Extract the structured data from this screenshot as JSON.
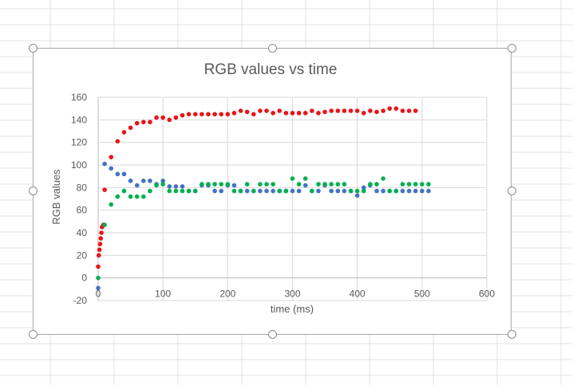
{
  "chart_data": {
    "type": "scatter",
    "title": "RGB values vs time",
    "xlabel": "time (ms)",
    "ylabel": "RGB values",
    "xlim": [
      0,
      600
    ],
    "ylim": [
      -20,
      160
    ],
    "xticks": [
      0,
      100,
      200,
      300,
      400,
      500,
      600
    ],
    "yticks": [
      -20,
      0,
      20,
      40,
      60,
      80,
      100,
      120,
      140,
      160
    ],
    "xtick_labels": [
      "0",
      "100",
      "200",
      "300",
      "400",
      "500",
      "600"
    ],
    "ytick_labels": [
      "-20",
      "0",
      "20",
      "40",
      "60",
      "80",
      "100",
      "120",
      "140",
      "160"
    ],
    "grid": true,
    "legend": "none",
    "series": [
      {
        "color": "#e8141a",
        "x": [
          0,
          1,
          2,
          3,
          4,
          5,
          6,
          8,
          10,
          20,
          30,
          40,
          50,
          60,
          70,
          80,
          90,
          100,
          110,
          120,
          130,
          140,
          150,
          160,
          170,
          180,
          190,
          200,
          210,
          220,
          230,
          240,
          250,
          260,
          270,
          280,
          290,
          300,
          310,
          320,
          330,
          340,
          350,
          360,
          370,
          380,
          390,
          400,
          410,
          420,
          430,
          440,
          450,
          460,
          470,
          480,
          490
        ],
        "y": [
          10,
          20,
          25,
          30,
          35,
          40,
          45,
          47,
          78,
          107,
          121,
          129,
          133,
          137,
          138,
          138,
          142,
          142,
          140,
          142,
          144,
          145,
          145,
          145,
          145,
          145,
          145,
          145,
          146,
          148,
          147,
          145,
          148,
          148,
          146,
          148,
          146,
          146,
          146,
          146,
          148,
          146,
          147,
          148,
          148,
          148,
          148,
          148,
          146,
          148,
          147,
          148,
          150,
          150,
          148,
          148,
          148
        ]
      },
      {
        "color": "#4472c4",
        "x": [
          0,
          10,
          20,
          30,
          40,
          50,
          60,
          70,
          80,
          90,
          100,
          110,
          120,
          130,
          140,
          150,
          160,
          170,
          180,
          190,
          200,
          210,
          220,
          230,
          240,
          250,
          260,
          270,
          280,
          290,
          300,
          310,
          320,
          330,
          340,
          350,
          360,
          370,
          380,
          390,
          400,
          410,
          420,
          430,
          440,
          450,
          460,
          470,
          480,
          490,
          500,
          510
        ],
        "y": [
          -9,
          101,
          97,
          92,
          92,
          86,
          82,
          86,
          86,
          83,
          86,
          81,
          81,
          81,
          77,
          77,
          82,
          82,
          77,
          77,
          82,
          82,
          77,
          77,
          77,
          77,
          77,
          77,
          77,
          77,
          77,
          77,
          82,
          77,
          77,
          82,
          77,
          77,
          77,
          77,
          73,
          80,
          82,
          77,
          77,
          77,
          77,
          77,
          77,
          77,
          77,
          77
        ]
      },
      {
        "color": "#00b050",
        "x": [
          0,
          10,
          20,
          30,
          40,
          50,
          60,
          70,
          80,
          90,
          100,
          110,
          120,
          130,
          140,
          150,
          160,
          170,
          180,
          190,
          200,
          210,
          220,
          230,
          240,
          250,
          260,
          270,
          280,
          290,
          300,
          310,
          320,
          330,
          340,
          350,
          360,
          370,
          380,
          390,
          400,
          410,
          420,
          430,
          440,
          450,
          460,
          470,
          480,
          490,
          500,
          510
        ],
        "y": [
          0,
          47,
          65,
          72,
          77,
          72,
          72,
          72,
          77,
          82,
          83,
          77,
          77,
          77,
          77,
          77,
          83,
          83,
          83,
          83,
          83,
          77,
          77,
          83,
          77,
          83,
          83,
          83,
          77,
          77,
          88,
          83,
          88,
          77,
          83,
          83,
          83,
          83,
          83,
          77,
          77,
          77,
          83,
          83,
          88,
          77,
          77,
          83,
          83,
          83,
          83,
          83
        ]
      }
    ]
  }
}
